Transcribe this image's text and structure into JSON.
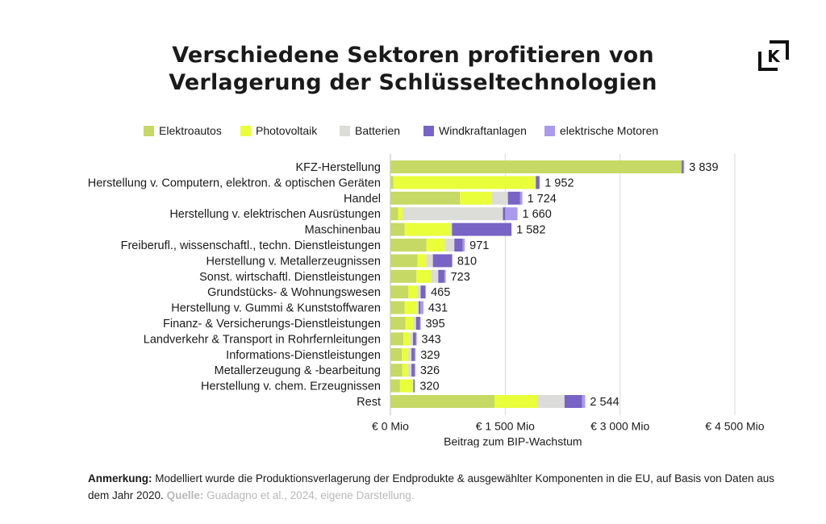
{
  "title": {
    "line1": "Verschiedene Sektoren profitieren von",
    "line2": "Verlagerung der Schlüsseltechnologien"
  },
  "logo": {
    "icon": "k-logo-icon",
    "letter": "K"
  },
  "colors": {
    "Elektroautos": "#c5d964",
    "Photovoltaik": "#e8ff3a",
    "Batterien": "#dcdcd8",
    "Windkraftanlagen": "#7764c4",
    "elektrische Motoren": "#a99aed",
    "grid": "#d9d9d9",
    "text": "#1a1a1a"
  },
  "chart_data": {
    "type": "bar",
    "orientation": "horizontal",
    "stacked": true,
    "categories": [
      "KFZ-Herstellung",
      "Herstellung v. Computern, elektron. & optischen Geräten",
      "Handel",
      "Herstellung v. elektrischen Ausrüstungen",
      "Maschinenbau",
      "Freiberufl., wissenschaftl., techn. Dienstleistungen",
      "Herstellung v. Metallerzeugnissen",
      "Sonst. wirtschaftl. Dienstleistungen",
      "Grundstücks- & Wohnungswesen",
      "Herstellung v. Gummi & Kunststoffwaren",
      "Finanz- & Versicherungs-Dienstleistungen",
      "Landverkehr & Transport in Rohrfernleitungen",
      "Informations-Dienstleistungen",
      "Metallerzeugung & -bearbeitung",
      "Herstellung v. chem. Erzeugnissen",
      "Rest"
    ],
    "series": [
      {
        "name": "Elektroautos",
        "values": [
          3805,
          40,
          910,
          100,
          185,
          470,
          355,
          340,
          235,
          185,
          195,
          170,
          150,
          155,
          125,
          1360
        ]
      },
      {
        "name": "Photovoltaik",
        "values": [
          0,
          1850,
          410,
          60,
          600,
          240,
          115,
          190,
          115,
          160,
          100,
          85,
          85,
          75,
          165,
          560
        ]
      },
      {
        "name": "Batterien",
        "values": [
          0,
          10,
          215,
          1310,
          20,
          125,
          85,
          95,
          45,
          25,
          40,
          40,
          40,
          45,
          10,
          355
        ]
      },
      {
        "name": "Windkraftanlagen",
        "values": [
          20,
          45,
          160,
          30,
          777,
          110,
          250,
          80,
          60,
          20,
          50,
          40,
          40,
          40,
          15,
          230
        ]
      },
      {
        "name": "elektrische Motoren",
        "values": [
          14,
          7,
          29,
          160,
          0,
          26,
          5,
          18,
          10,
          41,
          10,
          8,
          14,
          11,
          5,
          39
        ]
      }
    ],
    "totals": [
      3839,
      1952,
      1724,
      1660,
      1582,
      971,
      810,
      723,
      465,
      431,
      395,
      343,
      329,
      326,
      320,
      2544
    ],
    "total_labels": [
      "3 839",
      "1 952",
      "1 724",
      "1 660",
      "1 582",
      "971",
      "810",
      "723",
      "465",
      "431",
      "395",
      "343",
      "329",
      "326",
      "320",
      "2 544"
    ],
    "xlim": [
      0,
      4500
    ],
    "xticks": [
      0,
      1500,
      3000,
      4500
    ],
    "xtick_labels": [
      "€ 0 Mio",
      "€ 1 500 Mio",
      "€ 3 000 Mio",
      "€ 4 500 Mio"
    ],
    "xlabel": "Beitrag zum BIP-Wachstum",
    "ylabel": "",
    "grid": true,
    "legend_position": "top"
  },
  "note": {
    "label": "Anmerkung:",
    "text": " Modelliert wurde die Produktionsverlagerung der Endprodukte & ausgewählter Komponenten in die EU, auf Basis von Daten aus dem Jahr 2020.",
    "source_label": "Quelle:",
    "source_text": " Guadagno et al., 2024, eigene Darstellung."
  }
}
